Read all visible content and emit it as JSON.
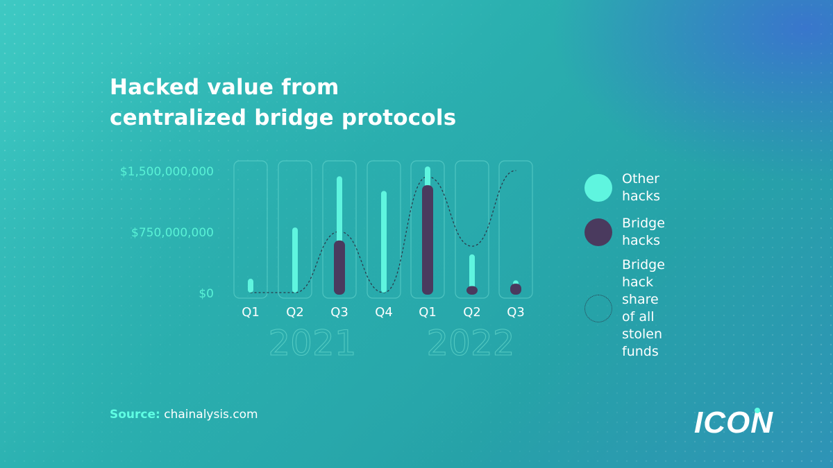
{
  "title_lines": [
    "Hacked value from",
    "centralized bridge protocols"
  ],
  "source": {
    "label": "Source:",
    "value": "chainalysis.com"
  },
  "logo": {
    "text": "ICON",
    "icon": "icon-logo"
  },
  "legend": [
    {
      "label_lines": [
        "Other hacks"
      ],
      "color": "#5ff5df",
      "style": "filled-circle"
    },
    {
      "label_lines": [
        "Bridge hacks"
      ],
      "color": "#4a3a5e",
      "style": "filled-circle"
    },
    {
      "label_lines": [
        "Bridge hack share",
        "of all stolen funds"
      ],
      "color": "#2a3a4a",
      "style": "dotted-circle"
    }
  ],
  "colors": {
    "other_hacks": "#5ff5df",
    "bridge_hacks": "#4a3a5e",
    "share_line": "#2a3a4a",
    "tick_text": "#59f2d6",
    "year_text": "#6fe0d0",
    "frame": "#7ee6dc"
  },
  "chart_data": {
    "type": "bar",
    "title": "Hacked value from centralized bridge protocols",
    "categories": [
      "Q1",
      "Q2",
      "Q3",
      "Q4",
      "Q1",
      "Q2",
      "Q3"
    ],
    "year_groups": [
      {
        "label": "2021",
        "categories": [
          "Q1",
          "Q2",
          "Q3",
          "Q4"
        ]
      },
      {
        "label": "2022",
        "categories": [
          "Q1",
          "Q2",
          "Q3"
        ]
      }
    ],
    "y_ticks": [
      {
        "value": 0,
        "label": "$0"
      },
      {
        "value": 750000000,
        "label": "$750,000,000"
      },
      {
        "value": 1500000000,
        "label": "$1,500,000,000"
      }
    ],
    "ylim": [
      0,
      1500000000
    ],
    "series": [
      {
        "name": "Other hacks",
        "values": [
          170000000,
          800000000,
          1430000000,
          1250000000,
          1550000000,
          470000000,
          150000000
        ]
      },
      {
        "name": "Bridge hacks",
        "values": [
          0,
          0,
          640000000,
          0,
          1320000000,
          80000000,
          110000000
        ]
      },
      {
        "name": "Bridge hack share of all stolen funds",
        "values": [
          0,
          0,
          0.5,
          0,
          0.95,
          0.38,
          1.0
        ]
      }
    ],
    "share_scale_max": 1.0,
    "grid": false,
    "legend_position": "right"
  }
}
